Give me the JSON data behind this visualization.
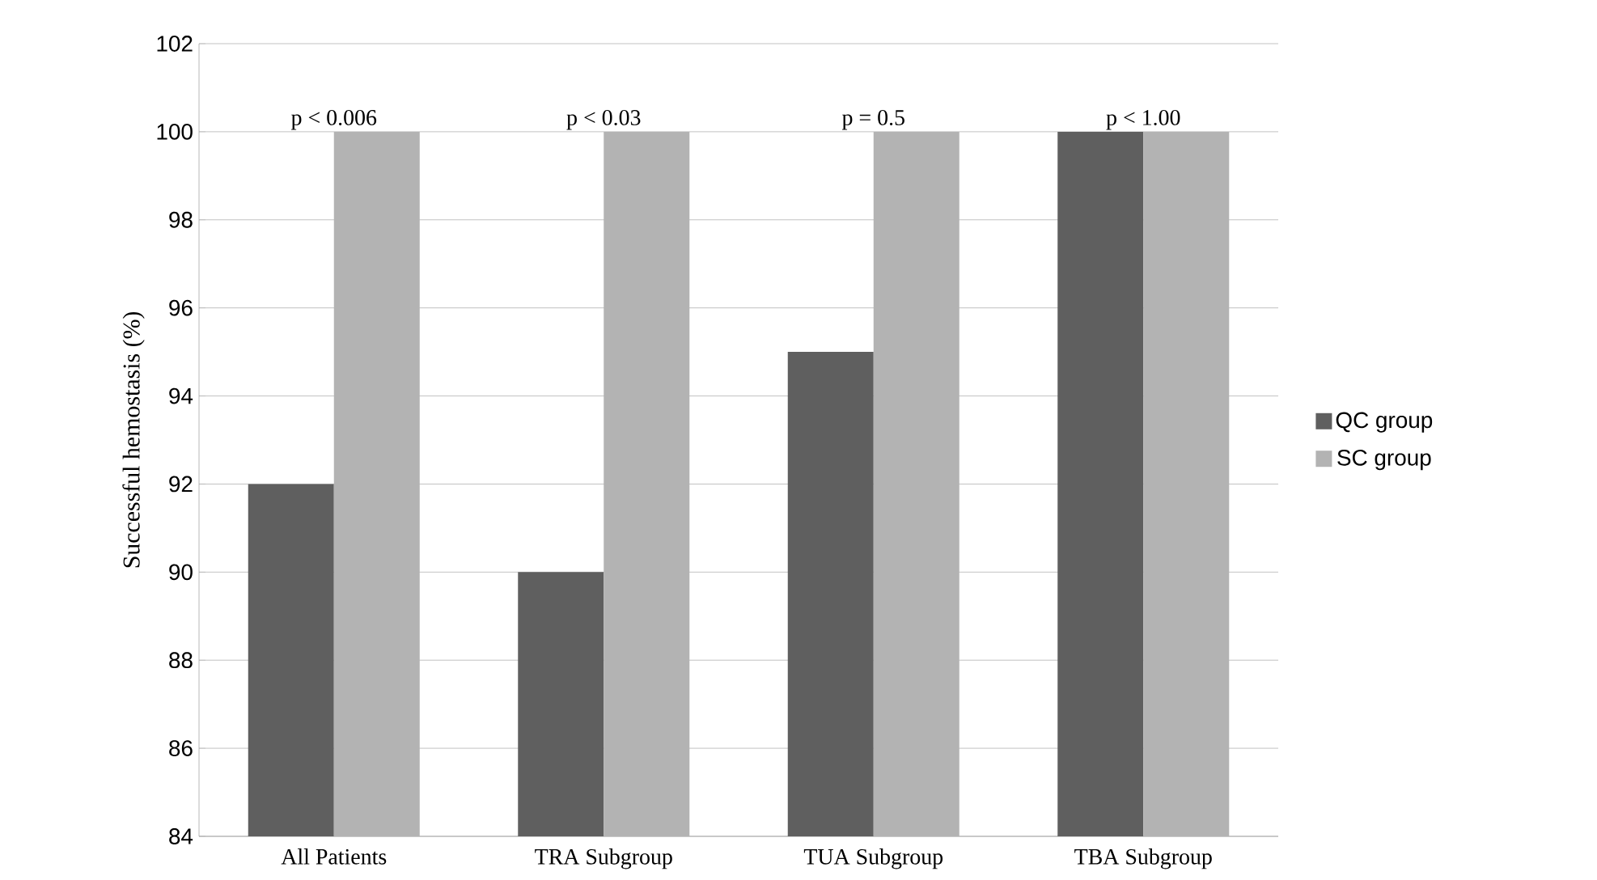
{
  "chart_data": {
    "type": "bar",
    "ylabel": "Successful hemostasis (%)",
    "categories": [
      "All Patients",
      "TRA Subgroup",
      "TUA Subgroup",
      "TBA Subgroup"
    ],
    "series": [
      {
        "name": "QC group",
        "color": "#5f5f5f",
        "values": [
          92,
          90,
          95,
          100
        ]
      },
      {
        "name": "SC group",
        "color": "#b3b3b3",
        "values": [
          100,
          100,
          100,
          100
        ]
      }
    ],
    "ylim": [
      84,
      102
    ],
    "yticks": [
      84,
      86,
      88,
      90,
      92,
      94,
      96,
      98,
      100,
      102
    ],
    "grid": "y",
    "legend": "right",
    "annotations": [
      {
        "text": "p < 0.006",
        "x": "All Patients",
        "y": 100
      },
      {
        "text": "p < 0.03",
        "x": "TRA Subgroup",
        "y": 100
      },
      {
        "text": "p = 0.5",
        "x": "TUA Subgroup",
        "y": 100
      },
      {
        "text": "p < 1.00",
        "x": "TBA Subgroup",
        "y": 100
      }
    ]
  }
}
